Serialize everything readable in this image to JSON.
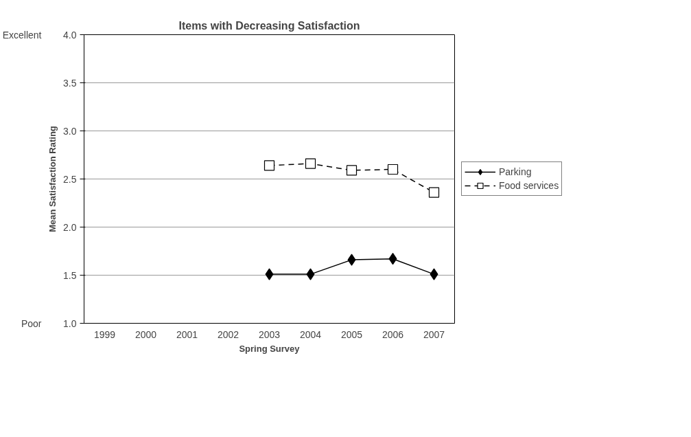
{
  "chart_data": {
    "type": "line",
    "title": "Items with Decreasing Satisfaction",
    "xlabel": "Spring Survey",
    "ylabel": "Mean Satisfaction Rating",
    "categories": [
      "1999",
      "2000",
      "2001",
      "2002",
      "2003",
      "2004",
      "2005",
      "2006",
      "2007"
    ],
    "series": [
      {
        "name": "Parking",
        "color": "#000000",
        "marker": "diamond",
        "line_style": "solid",
        "values": [
          null,
          null,
          null,
          null,
          1.51,
          1.51,
          1.66,
          1.67,
          1.51
        ]
      },
      {
        "name": "Food services",
        "color": "#000000",
        "marker": "square",
        "line_style": "dashed",
        "values": [
          null,
          null,
          null,
          null,
          2.64,
          2.66,
          2.59,
          2.6,
          2.36
        ]
      }
    ],
    "ylim": [
      1.0,
      4.0
    ],
    "yticks": [
      {
        "value": 1,
        "label": "1.0"
      },
      {
        "value": 1.5,
        "label": "1.5"
      },
      {
        "value": 2,
        "label": "2.0"
      },
      {
        "value": 2.5,
        "label": "2.5"
      },
      {
        "value": 3,
        "label": "3.0"
      },
      {
        "value": 3.5,
        "label": "3.5"
      },
      {
        "value": 4,
        "label": "4.0"
      }
    ],
    "grid": "y",
    "legend": "right",
    "annotations": [
      "Excellent",
      "Poor"
    ]
  }
}
